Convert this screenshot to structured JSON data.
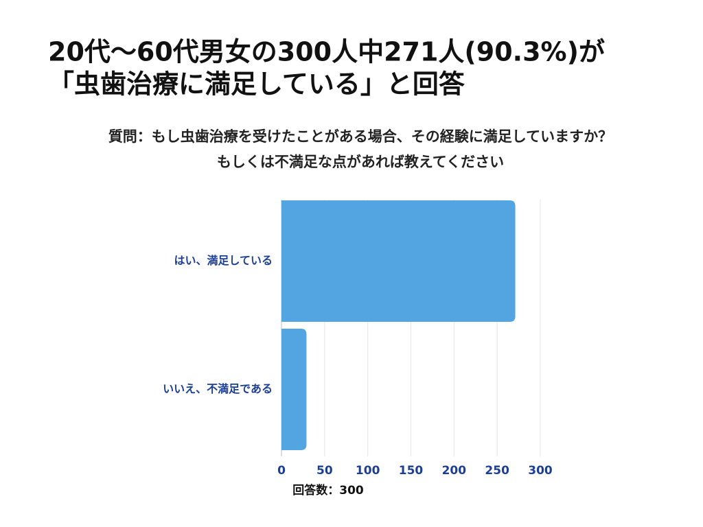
{
  "chart_data": {
    "type": "barh",
    "title": [
      "20代〜60代男女の300人中271人(90.3%)が",
      "「虫歯治療に満足している」と回答"
    ],
    "subtitle": [
      "質問：もし虫歯治療を受けたことがある場合、その経験に満足していますか？",
      "もしくは不満足な点があれば教えてください"
    ],
    "categories": [
      "はい、満足している",
      "いいえ、不満足である"
    ],
    "values": [
      271,
      29
    ],
    "color": "#52a5e0",
    "xlim": [
      0,
      300
    ],
    "xticks": [
      0,
      50,
      100,
      150,
      200,
      250,
      300
    ],
    "xlabel": "回答数：300",
    "grid": true
  }
}
